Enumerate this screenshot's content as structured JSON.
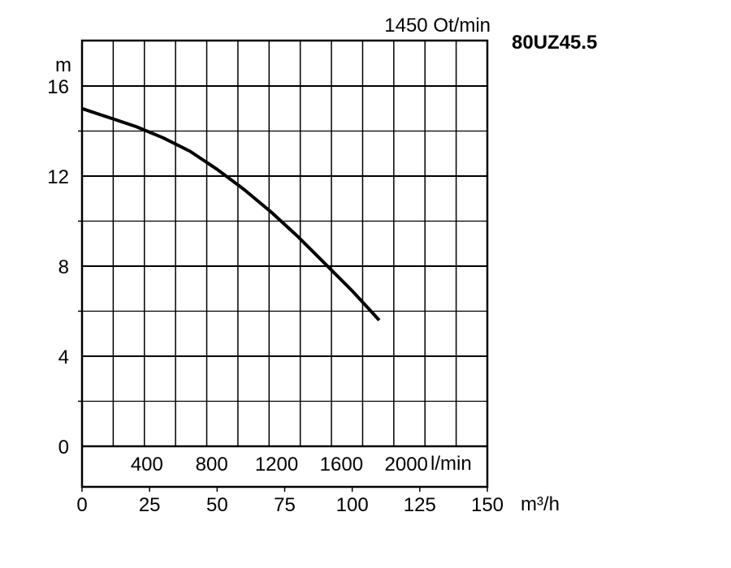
{
  "chart_data": {
    "type": "line",
    "model": "80UZ45.5",
    "speed_label": "1450 Ot/min",
    "y_unit": "m",
    "y_ticks": [
      "0",
      "4",
      "8",
      "12",
      "16"
    ],
    "ylim": [
      0,
      18
    ],
    "flow_lpm_ticks": [
      "400",
      "800",
      "1200",
      "1600",
      "2000"
    ],
    "flow_lpm_unit": "l/min",
    "flow_m3h_ticks": [
      "0",
      "25",
      "50",
      "75",
      "100",
      "125",
      "150"
    ],
    "flow_m3h_unit": "m³/h",
    "xlim": [
      0,
      150
    ],
    "grid": true,
    "series": [
      {
        "x": [
          0,
          10,
          20,
          30,
          40,
          50,
          60,
          70,
          80,
          90,
          100,
          110
        ],
        "y": [
          15.0,
          14.6,
          14.2,
          13.7,
          13.1,
          12.3,
          11.4,
          10.4,
          9.3,
          8.1,
          6.9,
          5.6
        ]
      }
    ]
  }
}
